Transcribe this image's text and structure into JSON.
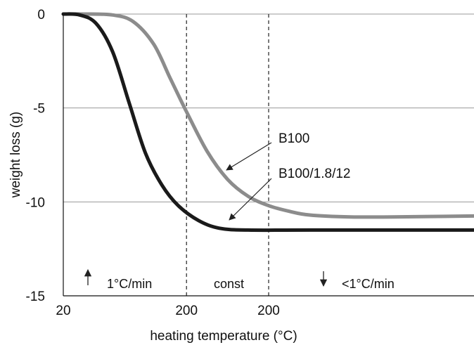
{
  "chart_data": {
    "type": "line",
    "title": "",
    "xlabel": "heating temperature  (°C)",
    "ylabel": "weight loss (g)",
    "ylim": [
      -15,
      0
    ],
    "y_ticks": [
      0,
      -5,
      -10,
      -15
    ],
    "grid": "horizontal",
    "x_tick_labels": [
      "20",
      "200",
      "200"
    ],
    "phase_dividers": 2,
    "phase_labels": [
      {
        "text": "1°C/min",
        "arrow": "up"
      },
      {
        "text": "const",
        "arrow": "none"
      },
      {
        "text": "<1°C/min",
        "arrow": "down"
      }
    ],
    "series": [
      {
        "name": "B100",
        "color": "#8c8c8c",
        "points": [
          [
            0,
            0
          ],
          [
            0.05,
            0
          ],
          [
            0.12,
            -0.05
          ],
          [
            0.17,
            -0.4
          ],
          [
            0.22,
            -1.6
          ],
          [
            0.26,
            -3.4
          ],
          [
            0.3,
            -5.2
          ],
          [
            0.35,
            -7.3
          ],
          [
            0.4,
            -8.8
          ],
          [
            0.45,
            -9.7
          ],
          [
            0.5,
            -10.2
          ],
          [
            0.55,
            -10.5
          ],
          [
            0.6,
            -10.7
          ],
          [
            0.7,
            -10.8
          ],
          [
            0.8,
            -10.8
          ],
          [
            1.0,
            -10.75
          ]
        ]
      },
      {
        "name": "B100/1.8/12",
        "color": "#1a1a1a",
        "points": [
          [
            0,
            0
          ],
          [
            0.04,
            -0.05
          ],
          [
            0.08,
            -0.5
          ],
          [
            0.12,
            -2.0
          ],
          [
            0.16,
            -4.7
          ],
          [
            0.2,
            -7.4
          ],
          [
            0.24,
            -9.1
          ],
          [
            0.28,
            -10.2
          ],
          [
            0.33,
            -11.0
          ],
          [
            0.38,
            -11.4
          ],
          [
            0.45,
            -11.5
          ],
          [
            0.6,
            -11.5
          ],
          [
            1.0,
            -11.5
          ]
        ]
      }
    ]
  }
}
